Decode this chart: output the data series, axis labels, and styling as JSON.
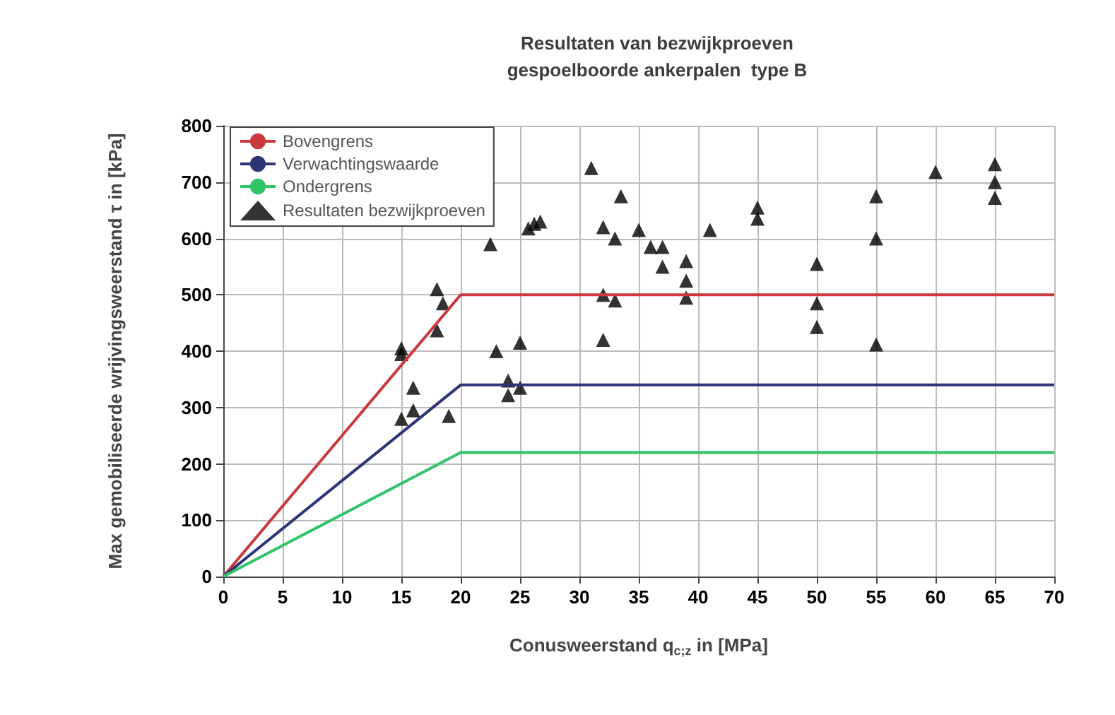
{
  "chart_data": {
    "type": "line",
    "title": "Resultaten van bezwijkproeven\ngespoelboorde ankerpalen  type B",
    "xlabel": "Conusweerstand q$_{c;z}$ in [MPa]",
    "ylabel": "Max gemobiliseerde wrijvingsweerstand τ in [kPa]",
    "xlim": [
      0,
      70
    ],
    "xticks": [
      0,
      5,
      10,
      15,
      20,
      25,
      30,
      35,
      40,
      45,
      50,
      55,
      60,
      65,
      70
    ],
    "ylim": [
      0,
      800
    ],
    "yticks": [
      0,
      100,
      200,
      300,
      400,
      500,
      600,
      700,
      800
    ],
    "grid": true,
    "legend": "top left",
    "series": [
      {
        "name": "Bovengrens",
        "color": "#c8383c",
        "x": [
          0,
          20,
          70
        ],
        "values": [
          0,
          500,
          500
        ]
      },
      {
        "name": "Verwachtingswaarde",
        "color": "#2e3577",
        "x": [
          0,
          20,
          70
        ],
        "values": [
          0,
          340,
          340
        ]
      },
      {
        "name": "Ondergrens",
        "color": "#2fc466",
        "x": [
          0,
          20,
          70
        ],
        "values": [
          0,
          220,
          220
        ]
      },
      {
        "name": "Resultaten bezwijkproeven",
        "type": "scatter",
        "marker": "triangle",
        "color": "#000000",
        "x": [
          15,
          15,
          15,
          16,
          16,
          18,
          18.5,
          18,
          19,
          22.5,
          23,
          24,
          24,
          25,
          25,
          25.7,
          26.2,
          26.7,
          31,
          32,
          32,
          32,
          33,
          33,
          33.5,
          35,
          36,
          37,
          37,
          39,
          39,
          39,
          41,
          45,
          45,
          50,
          50,
          50,
          55,
          55,
          55,
          60,
          65,
          65,
          65
        ],
        "values": [
          405,
          395,
          280,
          335,
          295,
          510,
          485,
          437,
          285,
          590,
          400,
          348,
          322,
          415,
          335,
          618,
          626,
          630,
          725,
          620,
          500,
          420,
          600,
          490,
          675,
          615,
          585,
          585,
          550,
          560,
          525,
          495,
          615,
          655,
          635,
          555,
          485,
          443,
          675,
          600,
          412,
          718,
          732,
          700,
          672
        ]
      }
    ]
  }
}
